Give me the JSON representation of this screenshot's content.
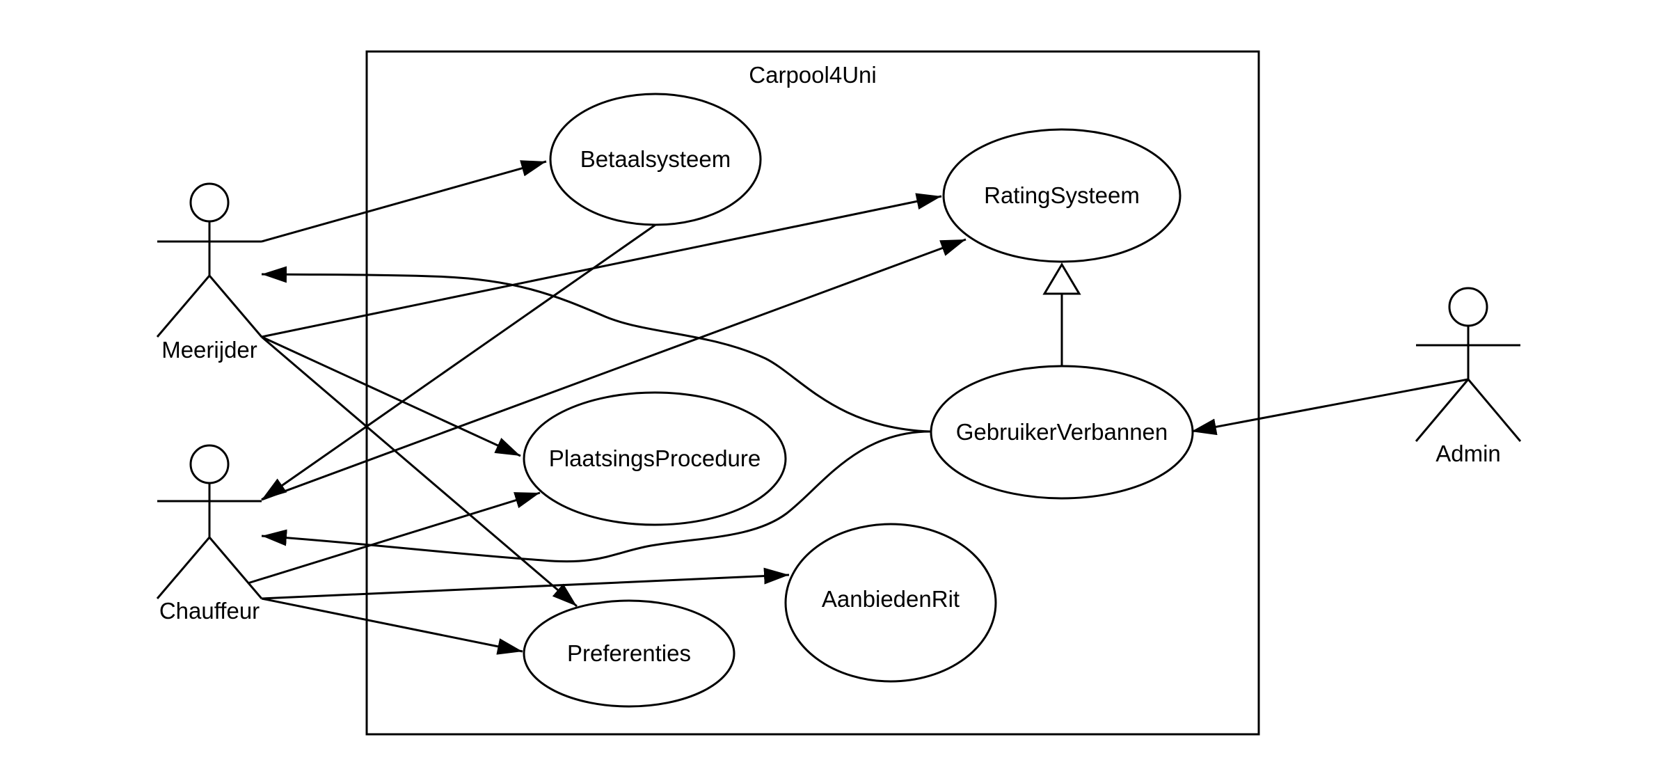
{
  "system": {
    "title": "Carpool4Uni"
  },
  "actors": {
    "meerijder": "Meerijder",
    "chauffeur": "Chauffeur",
    "admin": "Admin"
  },
  "use_cases": {
    "betaalsysteem": "Betaalsysteem",
    "ratingsysteem": "RatingSysteem",
    "plaatsingsprocedure": "PlaatsingsProcedure",
    "gebruikerverbannen": "GebruikerVerbannen",
    "aanbiedenrit": "AanbiedenRit",
    "preferenties": "Preferenties"
  },
  "colors": {
    "line": "#000000",
    "background": "#ffffff"
  }
}
